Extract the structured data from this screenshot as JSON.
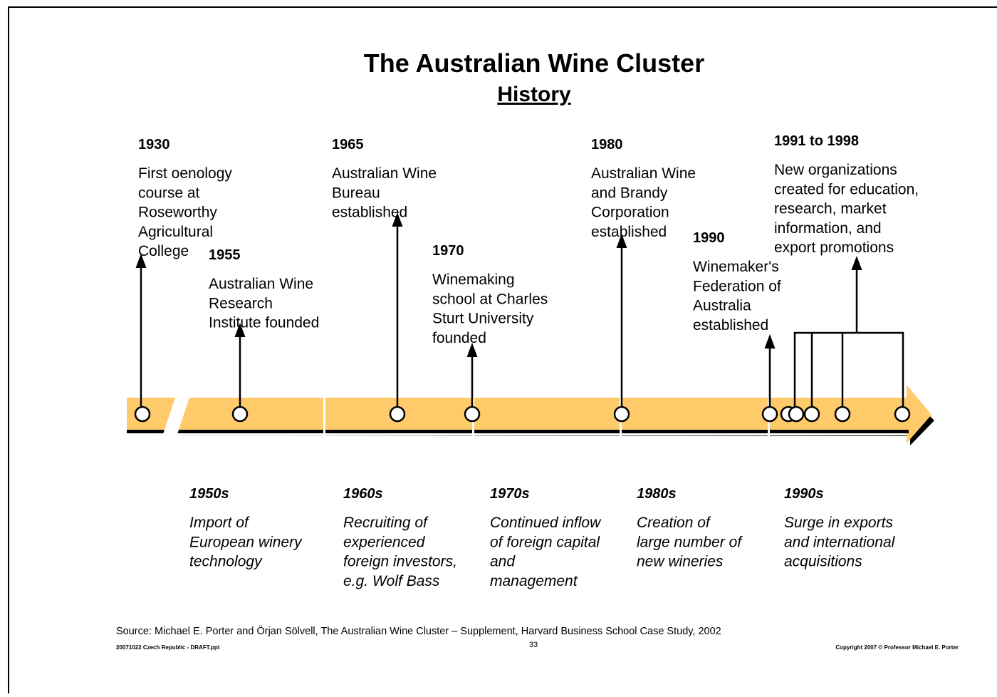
{
  "title": "The Australian Wine Cluster",
  "subtitle": "History",
  "events": [
    {
      "year": "1930",
      "lines": [
        "First oenology",
        "course at",
        "Roseworthy",
        "Agricultural",
        "College"
      ]
    },
    {
      "year": "1955",
      "lines": [
        "Australian Wine",
        "Research",
        "Institute founded"
      ]
    },
    {
      "year": "1965",
      "lines": [
        "Australian Wine",
        "Bureau",
        "established"
      ]
    },
    {
      "year": "1970",
      "lines": [
        "Winemaking",
        "school at Charles",
        "Sturt University",
        "founded"
      ]
    },
    {
      "year": "1980",
      "lines": [
        "Australian Wine",
        "and Brandy",
        "Corporation",
        "established"
      ]
    },
    {
      "year": "1990",
      "lines": [
        "Winemaker's",
        "Federation of",
        "Australia",
        "established"
      ]
    },
    {
      "year": "1991 to 1998",
      "lines": [
        "New organizations",
        "created for education,",
        "research, market",
        "information, and",
        "export promotions"
      ]
    }
  ],
  "decades": [
    {
      "label": "1950s",
      "lines": [
        "Import of",
        "European winery",
        "technology"
      ]
    },
    {
      "label": "1960s",
      "lines": [
        "Recruiting of",
        "experienced",
        "foreign investors,",
        "e.g. Wolf Bass"
      ]
    },
    {
      "label": "1970s",
      "lines": [
        "Continued inflow",
        "of foreign capital",
        "and",
        "management"
      ]
    },
    {
      "label": "1980s",
      "lines": [
        "Creation of",
        "large number of",
        "new wineries"
      ]
    },
    {
      "label": "1990s",
      "lines": [
        "Surge in exports",
        "and international",
        "acquisitions"
      ]
    }
  ],
  "source": "Source: Michael E. Porter and Örjan Sölvell, The Australian Wine Cluster – Supplement, Harvard Business School Case Study, 2002",
  "footer_left": "20071022 Czech Republic - DRAFT.ppt",
  "page_number": "33",
  "copyright": "Copyright 2007 © Professor Michael E. Porter"
}
